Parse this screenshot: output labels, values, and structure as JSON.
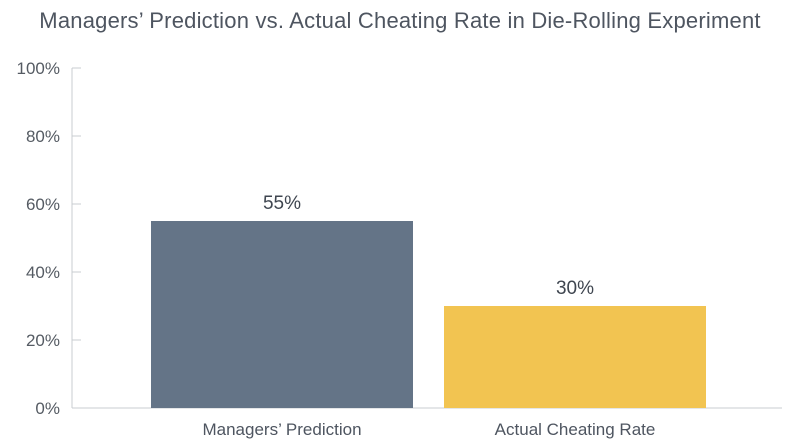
{
  "chart_data": {
    "type": "bar",
    "title": "Managers’ Prediction vs. Actual Cheating Rate in Die-Rolling Experiment",
    "categories": [
      "Managers’ Prediction",
      "Actual Cheating Rate"
    ],
    "values": [
      55,
      30
    ],
    "data_labels": [
      "55%",
      "30%"
    ],
    "bar_colors": [
      "#647487",
      "#f2c451"
    ],
    "ylim": [
      0,
      100
    ],
    "yticks": [
      0,
      20,
      40,
      60,
      80,
      100
    ],
    "ytick_labels": [
      "0%",
      "20%",
      "40%",
      "60%",
      "80%",
      "100%"
    ],
    "xlabel": "",
    "ylabel": "",
    "grid": false,
    "legend": "none"
  }
}
